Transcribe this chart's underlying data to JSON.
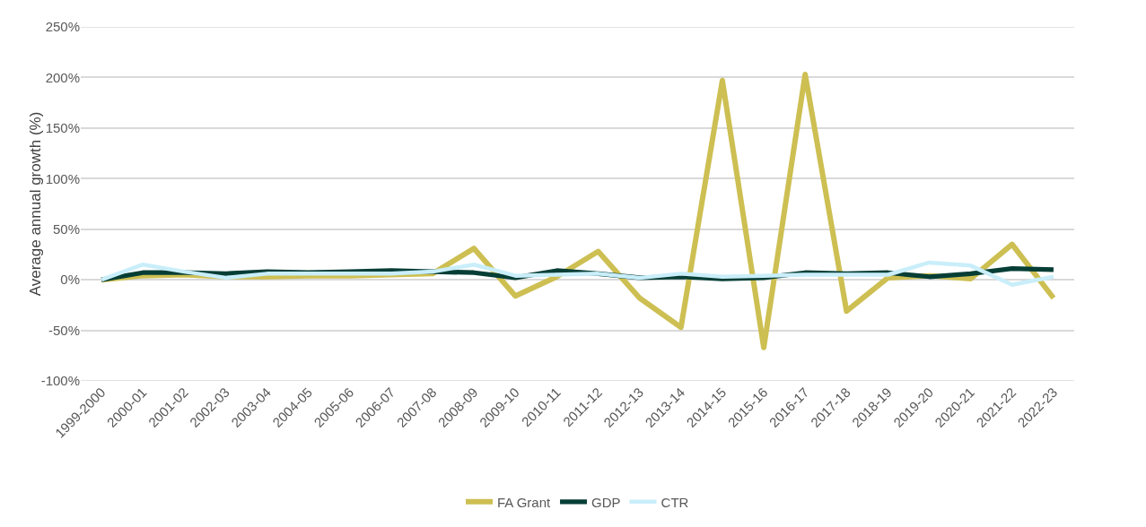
{
  "chart_data": {
    "type": "line",
    "ylabel": "Average annual growth (%)",
    "categories": [
      "1999-2000",
      "2000-01",
      "2001-02",
      "2002-03",
      "2003-04",
      "2004-05",
      "2005-06",
      "2006-07",
      "2007-08",
      "2008-09",
      "2009-10",
      "2010-11",
      "2011-12",
      "2012-13",
      "2013-14",
      "2014-15",
      "2015-16",
      "2016-17",
      "2017-18",
      "2018-19",
      "2019-20",
      "2020-21",
      "2021-22",
      "2022-23"
    ],
    "series": [
      {
        "name": "FA Grant",
        "color": "#cdbf52",
        "values": [
          0,
          4,
          5,
          3,
          3,
          4,
          4,
          5,
          6,
          31,
          -16,
          3,
          28,
          -18,
          -47,
          197,
          -67,
          203,
          -31,
          2,
          4,
          1,
          35,
          -18
        ]
      },
      {
        "name": "GDP",
        "color": "#063e36",
        "values": [
          0,
          7,
          7,
          6,
          8,
          7,
          8,
          9,
          8,
          7,
          2,
          9,
          6,
          2,
          3,
          1,
          2,
          7,
          6,
          7,
          3,
          6,
          11,
          10
        ]
      },
      {
        "name": "CTR",
        "color": "#c9eefa",
        "values": [
          0,
          15,
          8,
          2,
          6,
          6,
          6,
          6,
          8,
          15,
          4,
          5,
          6,
          2,
          6,
          3,
          4,
          5,
          5,
          5,
          17,
          14,
          -5,
          3
        ]
      }
    ],
    "ylim": [
      -100,
      250
    ],
    "yticks": [
      {
        "value": -100,
        "label": "-100%"
      },
      {
        "value": -50,
        "label": "-50%"
      },
      {
        "value": 0,
        "label": "0%"
      },
      {
        "value": 50,
        "label": "50%"
      },
      {
        "value": 100,
        "label": "100%"
      },
      {
        "value": 150,
        "label": "150%"
      },
      {
        "value": 200,
        "label": "200%"
      },
      {
        "value": 250,
        "label": "250%"
      }
    ],
    "grid": "y",
    "legend": "bottom",
    "marker": "none",
    "line_style": "solid"
  }
}
